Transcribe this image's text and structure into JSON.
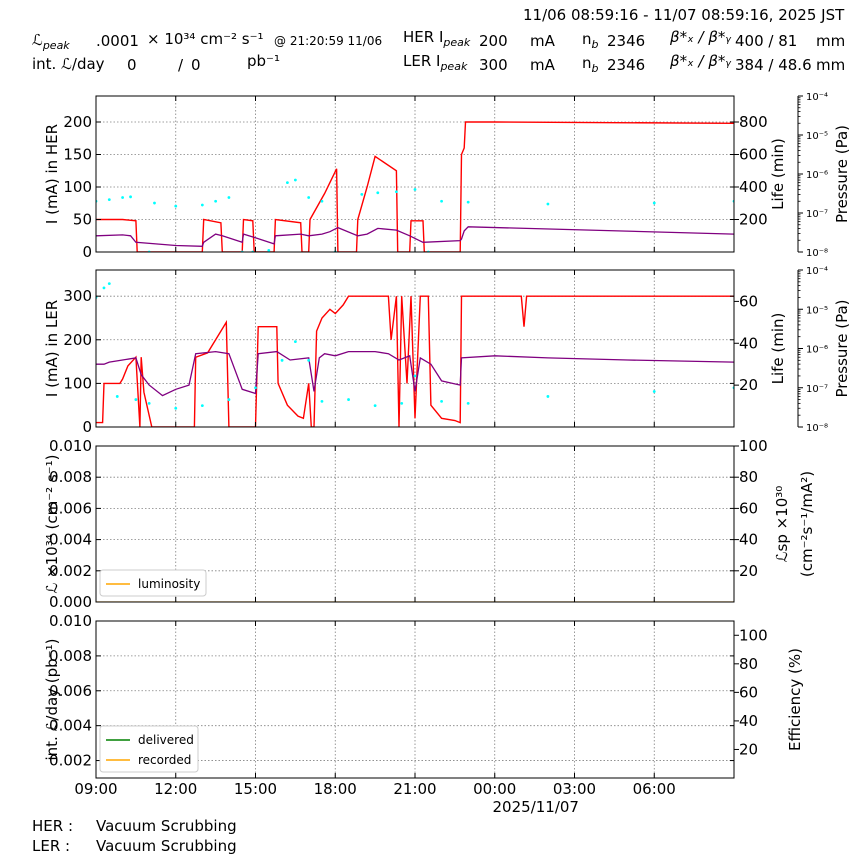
{
  "header": {
    "time_range": "11/06 08:59:16 - 11/07 08:59:16, 2025 JST",
    "lum_peak_label": "ℒ",
    "lum_peak_sub": "peak",
    "lum_peak_value": ".0001",
    "lum_peak_unit": "× 10³⁴ cm⁻² s⁻¹",
    "lum_peak_time": "@ 21:20:59 11/06",
    "int_lum_label": "int. ℒ/day",
    "int_lum_delivered": "0",
    "int_lum_sep": "/",
    "int_lum_recorded": "0",
    "int_lum_unit": "pb⁻¹",
    "her_ipeak_label": "HER I",
    "her_ipeak_sub": "peak",
    "her_ipeak_value": "200",
    "ler_ipeak_label": "LER I",
    "ler_ipeak_sub": "peak",
    "ler_ipeak_value": "300",
    "current_unit": "mA",
    "nb_label": "n",
    "nb_sub": "b",
    "her_nb": "2346",
    "ler_nb": "2346",
    "beta_label": "β*ₓ / β*ᵧ",
    "her_beta": "400  / 81",
    "ler_beta": "384  / 48.6",
    "beta_unit": "mm"
  },
  "footer": {
    "her_label": "HER :",
    "her_status": "Vacuum Scrubbing",
    "ler_label": "LER :",
    "ler_status": "Vacuum Scrubbing"
  },
  "colors": {
    "current": "#ff0000",
    "lifetime": "#800080",
    "pressure": "#00ffff",
    "luminosity": "#ffa500",
    "delivered": "#008000",
    "recorded": "#ffa500",
    "grid": "#808080"
  },
  "chart_data": [
    {
      "type": "line",
      "panel": "her",
      "ylabel": "I (mA) in HER",
      "ylim": [
        0,
        240
      ],
      "yticks": [
        0,
        50,
        100,
        150,
        200
      ],
      "y2label": "Life (min)",
      "y2lim": [
        0,
        960
      ],
      "y2ticks": [
        200,
        400,
        600,
        800
      ],
      "y3label": "Pressure (Pa)",
      "y3log": true,
      "y3lim": [
        "1e-8",
        "1e-4"
      ],
      "y3ticks": [
        "10⁻⁸",
        "10⁻⁷",
        "10⁻⁶",
        "10⁻⁵",
        "10⁻⁴"
      ],
      "xlim_hours": [
        9.0,
        33.0
      ],
      "grid": true,
      "series": [
        {
          "role": "current",
          "points": [
            [
              9.0,
              50
            ],
            [
              10.0,
              50
            ],
            [
              10.5,
              48
            ],
            [
              10.55,
              0
            ],
            [
              11.15,
              0
            ],
            [
              11.2,
              0
            ],
            [
              12.3,
              0
            ],
            [
              13.0,
              0
            ],
            [
              13.05,
              50
            ],
            [
              13.7,
              45
            ],
            [
              13.75,
              0
            ],
            [
              14.5,
              0
            ],
            [
              14.55,
              50
            ],
            [
              14.9,
              48
            ],
            [
              14.95,
              0
            ],
            [
              15.7,
              0
            ],
            [
              15.75,
              50
            ],
            [
              16.7,
              45
            ],
            [
              16.75,
              0
            ],
            [
              17.0,
              0
            ],
            [
              17.05,
              50
            ],
            [
              17.6,
              90
            ],
            [
              18.05,
              128
            ],
            [
              18.1,
              0
            ],
            [
              18.8,
              0
            ],
            [
              18.85,
              50
            ],
            [
              19.2,
              100
            ],
            [
              19.5,
              147
            ],
            [
              20.3,
              125
            ],
            [
              20.35,
              0
            ],
            [
              20.8,
              0
            ],
            [
              20.85,
              48
            ],
            [
              21.3,
              48
            ],
            [
              21.35,
              0
            ],
            [
              22.7,
              0
            ],
            [
              22.75,
              150
            ],
            [
              22.85,
              160
            ],
            [
              22.9,
              200
            ],
            [
              24.0,
              200
            ],
            [
              33.0,
              198
            ]
          ]
        },
        {
          "role": "lifetime",
          "points": [
            [
              9.0,
              100
            ],
            [
              10.0,
              105
            ],
            [
              10.3,
              100
            ],
            [
              10.5,
              60
            ],
            [
              12.0,
              40
            ],
            [
              13.0,
              35
            ],
            [
              13.05,
              60
            ],
            [
              13.5,
              110
            ],
            [
              13.75,
              100
            ],
            [
              14.5,
              60
            ],
            [
              14.55,
              110
            ],
            [
              14.95,
              90
            ],
            [
              15.7,
              50
            ],
            [
              15.75,
              100
            ],
            [
              16.7,
              110
            ],
            [
              17.0,
              100
            ],
            [
              17.5,
              110
            ],
            [
              17.8,
              125
            ],
            [
              18.1,
              150
            ],
            [
              18.85,
              100
            ],
            [
              19.2,
              110
            ],
            [
              19.6,
              145
            ],
            [
              20.3,
              135
            ],
            [
              20.8,
              100
            ],
            [
              21.3,
              60
            ],
            [
              22.7,
              70
            ],
            [
              22.75,
              80
            ],
            [
              22.85,
              130
            ],
            [
              23.0,
              155
            ],
            [
              33.0,
              110
            ]
          ]
        },
        {
          "role": "pressure",
          "points": [
            [
              9.0,
              "2e-7"
            ],
            [
              9.5,
              "2.2e-7"
            ],
            [
              10.0,
              "2.5e-7"
            ],
            [
              10.3,
              "2.6e-7"
            ],
            [
              11.0,
              "1e-8"
            ],
            [
              11.2,
              "1.8e-7"
            ],
            [
              12.0,
              "1.5e-7"
            ],
            [
              13.0,
              "1.6e-7"
            ],
            [
              13.5,
              "2e-7"
            ],
            [
              14.0,
              "2.5e-7"
            ],
            [
              14.5,
              "1e-8"
            ],
            [
              14.9,
              "1e-8"
            ],
            [
              15.5,
              "1.1e-8"
            ],
            [
              16.2,
              "6e-7"
            ],
            [
              16.5,
              "7e-7"
            ],
            [
              17.0,
              "2.5e-7"
            ],
            [
              17.5,
              "2e-7"
            ],
            [
              18.0,
              "1e-8"
            ],
            [
              19.0,
              "3e-7"
            ],
            [
              19.6,
              "3.3e-7"
            ],
            [
              20.3,
              "3.5e-7"
            ],
            [
              21.0,
              "4e-7"
            ],
            [
              21.5,
              "1e-8"
            ],
            [
              22.0,
              "2e-7"
            ],
            [
              23.0,
              "1.9e-7"
            ],
            [
              26.0,
              "1.7e-7"
            ],
            [
              30.0,
              "1.8e-7"
            ],
            [
              33.0,
              "2e-7"
            ]
          ]
        }
      ]
    },
    {
      "type": "line",
      "panel": "ler",
      "ylabel": "I (mA) in LER",
      "ylim": [
        0,
        360
      ],
      "yticks": [
        0,
        100,
        200,
        300
      ],
      "y2label": "Life (min)",
      "y2lim": [
        0,
        75
      ],
      "y2ticks": [
        20,
        40,
        60
      ],
      "y3label": "Pressure (Pa)",
      "y3log": true,
      "y3lim": [
        "1e-8",
        "1e-4"
      ],
      "y3ticks": [
        "10⁻⁸",
        "10⁻⁷",
        "10⁻⁶",
        "10⁻⁵",
        "10⁻⁴"
      ],
      "xlim_hours": [
        9.0,
        33.0
      ],
      "grid": true,
      "series": [
        {
          "role": "current",
          "points": [
            [
              9.0,
              10
            ],
            [
              9.25,
              10
            ],
            [
              9.3,
              100
            ],
            [
              9.9,
              100
            ],
            [
              10.0,
              110
            ],
            [
              10.2,
              140
            ],
            [
              10.5,
              160
            ],
            [
              10.65,
              0
            ],
            [
              10.7,
              160
            ],
            [
              10.8,
              80
            ],
            [
              11.1,
              0
            ],
            [
              12.0,
              0
            ],
            [
              12.5,
              0
            ],
            [
              12.7,
              0
            ],
            [
              12.75,
              160
            ],
            [
              13.2,
              170
            ],
            [
              13.7,
              220
            ],
            [
              13.9,
              240
            ],
            [
              14.0,
              0
            ],
            [
              15.0,
              0
            ],
            [
              15.1,
              230
            ],
            [
              15.8,
              230
            ],
            [
              15.85,
              100
            ],
            [
              16.2,
              50
            ],
            [
              16.6,
              25
            ],
            [
              16.8,
              20
            ],
            [
              17.0,
              100
            ],
            [
              17.1,
              0
            ],
            [
              17.2,
              0
            ],
            [
              17.3,
              220
            ],
            [
              17.5,
              250
            ],
            [
              17.8,
              270
            ],
            [
              18.0,
              260
            ],
            [
              18.3,
              280
            ],
            [
              18.5,
              300
            ],
            [
              19.0,
              300
            ],
            [
              20.0,
              300
            ],
            [
              20.1,
              200
            ],
            [
              20.3,
              300
            ],
            [
              20.4,
              0
            ],
            [
              20.5,
              300
            ],
            [
              20.7,
              100
            ],
            [
              20.85,
              300
            ],
            [
              21.0,
              20
            ],
            [
              21.2,
              300
            ],
            [
              21.5,
              300
            ],
            [
              21.6,
              50
            ],
            [
              22.0,
              20
            ],
            [
              22.5,
              15
            ],
            [
              22.7,
              10
            ],
            [
              22.75,
              300
            ],
            [
              25.0,
              300
            ],
            [
              25.1,
              230
            ],
            [
              25.2,
              300
            ],
            [
              28.0,
              300
            ],
            [
              33.0,
              300
            ]
          ]
        },
        {
          "role": "lifetime",
          "points": [
            [
              9.0,
              30
            ],
            [
              9.3,
              30
            ],
            [
              9.5,
              31
            ],
            [
              10.0,
              32
            ],
            [
              10.5,
              33
            ],
            [
              10.7,
              25
            ],
            [
              11.0,
              20
            ],
            [
              11.5,
              15
            ],
            [
              12.0,
              18
            ],
            [
              12.5,
              20
            ],
            [
              12.75,
              35
            ],
            [
              13.5,
              36
            ],
            [
              14.0,
              35
            ],
            [
              14.5,
              18
            ],
            [
              15.0,
              16
            ],
            [
              15.1,
              35
            ],
            [
              15.8,
              36
            ],
            [
              16.3,
              32
            ],
            [
              17.0,
              33
            ],
            [
              17.2,
              17
            ],
            [
              17.4,
              33
            ],
            [
              17.6,
              35
            ],
            [
              18.0,
              34
            ],
            [
              18.5,
              36
            ],
            [
              19.5,
              36
            ],
            [
              20.0,
              35
            ],
            [
              20.4,
              32
            ],
            [
              20.8,
              34
            ],
            [
              21.0,
              17
            ],
            [
              21.2,
              33
            ],
            [
              21.6,
              30
            ],
            [
              22.0,
              22
            ],
            [
              22.7,
              20
            ],
            [
              22.75,
              33
            ],
            [
              24.0,
              34
            ],
            [
              26.0,
              33
            ],
            [
              29.0,
              32
            ],
            [
              33.0,
              31
            ]
          ]
        },
        {
          "role": "pressure",
          "points": [
            [
              9.0,
              "2e-5"
            ],
            [
              9.3,
              "3.5e-5"
            ],
            [
              9.5,
              "4.5e-5"
            ],
            [
              9.8,
              "6e-8"
            ],
            [
              10.5,
              "5e-8"
            ],
            [
              11.0,
              "4e-8"
            ],
            [
              12.0,
              "3e-8"
            ],
            [
              13.0,
              "3.5e-8"
            ],
            [
              14.0,
              "5e-8"
            ],
            [
              15.0,
              "1e-7"
            ],
            [
              16.0,
              "5e-7"
            ],
            [
              16.5,
              "1.5e-6"
            ],
            [
              17.0,
              "5e-7"
            ],
            [
              17.5,
              "4.5e-8"
            ],
            [
              18.5,
              "5e-8"
            ],
            [
              19.5,
              "3.5e-8"
            ],
            [
              20.5,
              "4e-8"
            ],
            [
              21.0,
              "2e-7"
            ],
            [
              22.0,
              "4.5e-8"
            ],
            [
              23.0,
              "4e-8"
            ],
            [
              26.0,
              "6e-8"
            ],
            [
              30.0,
              "8e-8"
            ],
            [
              33.0,
              "1e-7"
            ]
          ]
        }
      ]
    },
    {
      "type": "line",
      "panel": "luminosity",
      "ylabel": "ℒ ×10³⁴ (cm⁻² s⁻¹)",
      "ylim": [
        0,
        0.01
      ],
      "yticks": [
        0.0,
        0.002,
        0.004,
        0.006,
        0.008,
        0.01
      ],
      "yticklabels": [
        "0.000",
        "0.002",
        "0.004",
        "0.006",
        "0.008",
        "0.010"
      ],
      "y2label_a": "ℒsp ×10³⁰",
      "y2label_b": "(cm⁻²s⁻¹/mA²)",
      "y2lim": [
        0,
        100
      ],
      "y2ticks": [
        20,
        40,
        60,
        80,
        100
      ],
      "xlim_hours": [
        9.0,
        33.0
      ],
      "grid": true,
      "legend": "lower-left",
      "series": [
        {
          "name": "luminosity",
          "role": "luminosity",
          "points": [
            [
              9.0,
              0
            ],
            [
              33.0,
              0
            ]
          ]
        }
      ]
    },
    {
      "type": "line",
      "panel": "integrated",
      "ylabel": "int. ℒ/day (pb⁻¹)",
      "ylim": [
        0.001,
        0.01
      ],
      "yticks": [
        0.002,
        0.004,
        0.006,
        0.008,
        0.01
      ],
      "yticklabels": [
        "0.002",
        "0.004",
        "0.006",
        "0.008",
        "0.010"
      ],
      "y2label": "Efficiency (%)",
      "y2lim": [
        0,
        110
      ],
      "y2ticks": [
        20,
        40,
        60,
        80,
        100
      ],
      "xlim_hours": [
        9.0,
        33.0
      ],
      "xticks": [
        9,
        12,
        15,
        18,
        21,
        24,
        27,
        30
      ],
      "xticklabels": [
        "09:00",
        "12:00",
        "15:00",
        "18:00",
        "21:00",
        "00:00",
        "03:00",
        "06:00"
      ],
      "xdate_label": "2025/11/07",
      "grid": true,
      "legend": "lower-left",
      "series": [
        {
          "name": "delivered",
          "role": "delivered",
          "points": []
        },
        {
          "name": "recorded",
          "role": "recorded",
          "points": []
        }
      ]
    }
  ]
}
